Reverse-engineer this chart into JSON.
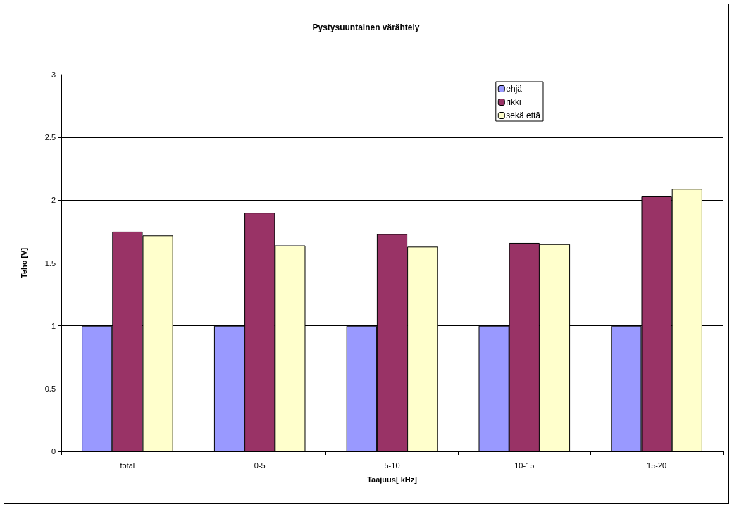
{
  "chart_data": {
    "type": "bar",
    "title": "Pystysuuntainen värähtely",
    "xlabel": "Taajuus[ kHz]",
    "ylabel": "Teho [V]",
    "categories": [
      "total",
      "0-5",
      "5-10",
      "10-15",
      "15-20"
    ],
    "series": [
      {
        "name": "ehjä",
        "color": "#9999ff",
        "values": [
          1,
          1,
          1,
          1,
          1
        ]
      },
      {
        "name": "rikki",
        "color": "#993366",
        "values": [
          1.75,
          1.9,
          1.73,
          1.66,
          2.03
        ]
      },
      {
        "name": "sekä että",
        "color": "#ffffcc",
        "values": [
          1.72,
          1.64,
          1.63,
          1.65,
          2.09
        ]
      }
    ],
    "ylim": [
      0,
      3
    ],
    "yticks": [
      0,
      0.5,
      1,
      1.5,
      2,
      2.5,
      3
    ],
    "grid": "y",
    "legend": "top right"
  }
}
